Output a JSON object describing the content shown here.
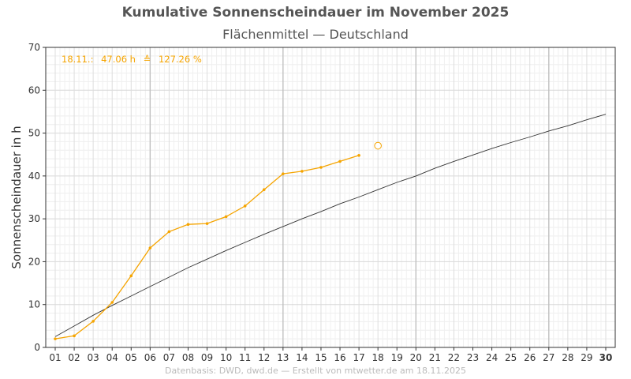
{
  "chart_data": {
    "type": "line",
    "title": "Kumulative Sonnenscheindauer im November 2025",
    "subtitle": "Flächenmittel — Deutschland",
    "ylabel": "Sonnenscheindauer in h",
    "xlabel": "",
    "ylim": [
      0,
      70
    ],
    "xlim": [
      1,
      30
    ],
    "yticks": [
      "0",
      "10",
      "20",
      "30",
      "40",
      "50",
      "60",
      "70"
    ],
    "categories": [
      "01",
      "02",
      "03",
      "04",
      "05",
      "06",
      "07",
      "08",
      "09",
      "10",
      "11",
      "12",
      "13",
      "14",
      "15",
      "16",
      "17",
      "18",
      "19",
      "20",
      "21",
      "22",
      "23",
      "24",
      "25",
      "26",
      "27",
      "28",
      "29",
      "30"
    ],
    "grid": true,
    "series": [
      {
        "color": "#f5a400",
        "x": [
          1,
          2,
          3,
          4,
          5,
          6,
          7,
          8,
          9,
          10,
          11,
          12,
          13,
          14,
          15,
          16,
          17
        ],
        "values": [
          2.0,
          2.7,
          6.1,
          10.5,
          16.7,
          23.2,
          27.0,
          28.7,
          28.9,
          30.5,
          33.0,
          36.8,
          40.5,
          41.1,
          42.0,
          43.4,
          44.8
        ]
      },
      {
        "color": "#333333",
        "x": [
          1,
          2,
          3,
          4,
          5,
          6,
          7,
          8,
          9,
          10,
          11,
          12,
          13,
          14,
          15,
          16,
          17,
          18,
          19,
          20,
          21,
          22,
          23,
          24,
          25,
          26,
          27,
          28,
          29,
          30
        ],
        "values": [
          2.5,
          5.0,
          7.5,
          9.8,
          12.0,
          14.2,
          16.4,
          18.6,
          20.6,
          22.6,
          24.5,
          26.4,
          28.2,
          30.0,
          31.7,
          33.5,
          35.1,
          36.8,
          38.5,
          40.0,
          41.8,
          43.4,
          44.9,
          46.4,
          47.8,
          49.1,
          50.5,
          51.7,
          53.1,
          54.4
        ]
      }
    ],
    "marker": {
      "x": 18,
      "value": 47.06,
      "color": "#f5a400"
    },
    "annotation": {
      "date": "18.11.:",
      "value": "47.06 h",
      "symbol": "≙",
      "percent": "127.26 %",
      "color": "#f5a400"
    }
  },
  "footer": "Datenbasis: DWD, dwd.de — Erstellt von mtwetter.de am 18.11.2025"
}
